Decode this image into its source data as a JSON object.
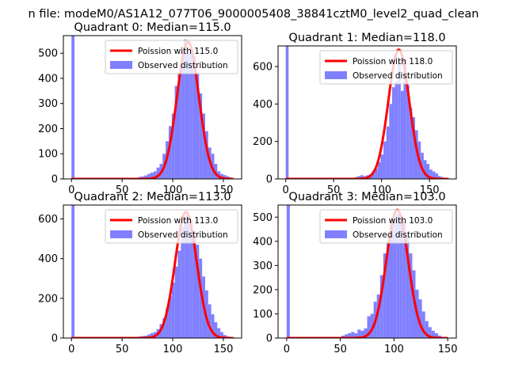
{
  "figure": {
    "suptitle": "n file: modeM0/AS1A12_077T06_9000005408_38841cztM0_level2_quad_clean"
  },
  "colors": {
    "hist": "#8080ff",
    "poisson": "#ff0000",
    "axes": "#000000"
  },
  "chart_data": [
    {
      "type": "bar",
      "title": "Quadrant 0: Median=115.0",
      "xlabel": "",
      "ylabel": "",
      "xlim": [
        -8,
        168
      ],
      "ylim": [
        0,
        570
      ],
      "xticks": [
        0,
        50,
        100,
        150
      ],
      "yticks": [
        0,
        100,
        200,
        300,
        400,
        500
      ],
      "grid": false,
      "legend_position": "top-right",
      "series": [
        {
          "name": "Poission with 115.0",
          "kind": "line",
          "mean": 115.0,
          "peak": 545,
          "x_range": [
            0,
            160
          ]
        },
        {
          "name": "Observed distribution",
          "kind": "histogram",
          "bin_width": 3,
          "bins": [
            {
              "x": 0,
              "y": 570
            },
            {
              "x": 66,
              "y": 8
            },
            {
              "x": 69,
              "y": 10
            },
            {
              "x": 72,
              "y": 14
            },
            {
              "x": 75,
              "y": 20
            },
            {
              "x": 78,
              "y": 25
            },
            {
              "x": 81,
              "y": 30
            },
            {
              "x": 84,
              "y": 45
            },
            {
              "x": 87,
              "y": 60
            },
            {
              "x": 90,
              "y": 100
            },
            {
              "x": 93,
              "y": 150
            },
            {
              "x": 96,
              "y": 210
            },
            {
              "x": 99,
              "y": 260
            },
            {
              "x": 102,
              "y": 370
            },
            {
              "x": 105,
              "y": 420
            },
            {
              "x": 108,
              "y": 480
            },
            {
              "x": 111,
              "y": 555
            },
            {
              "x": 114,
              "y": 500
            },
            {
              "x": 117,
              "y": 510
            },
            {
              "x": 120,
              "y": 490
            },
            {
              "x": 123,
              "y": 420
            },
            {
              "x": 126,
              "y": 340
            },
            {
              "x": 129,
              "y": 260
            },
            {
              "x": 132,
              "y": 190
            },
            {
              "x": 135,
              "y": 125
            },
            {
              "x": 138,
              "y": 100
            },
            {
              "x": 141,
              "y": 60
            },
            {
              "x": 144,
              "y": 30
            },
            {
              "x": 147,
              "y": 20
            },
            {
              "x": 150,
              "y": 15
            },
            {
              "x": 153,
              "y": 10
            },
            {
              "x": 156,
              "y": 5
            }
          ]
        }
      ]
    },
    {
      "type": "bar",
      "title": "Quadrant 1: Median=118.0",
      "xlabel": "",
      "ylabel": "",
      "xlim": [
        -8,
        178
      ],
      "ylim": [
        0,
        710
      ],
      "xticks": [
        0,
        50,
        100,
        150
      ],
      "yticks": [
        0,
        200,
        400,
        600
      ],
      "grid": false,
      "legend_position": "top-right",
      "series": [
        {
          "name": "Poission with 118.0",
          "kind": "line",
          "mean": 118.0,
          "peak": 690,
          "x_range": [
            0,
            170
          ]
        },
        {
          "name": "Observed distribution",
          "kind": "histogram",
          "bin_width": 3,
          "bins": [
            {
              "x": 0,
              "y": 710
            },
            {
              "x": 72,
              "y": 10
            },
            {
              "x": 75,
              "y": 15
            },
            {
              "x": 78,
              "y": 20
            },
            {
              "x": 81,
              "y": 15
            },
            {
              "x": 84,
              "y": 20
            },
            {
              "x": 87,
              "y": 25
            },
            {
              "x": 90,
              "y": 40
            },
            {
              "x": 93,
              "y": 55
            },
            {
              "x": 96,
              "y": 90
            },
            {
              "x": 99,
              "y": 130
            },
            {
              "x": 102,
              "y": 200
            },
            {
              "x": 105,
              "y": 280
            },
            {
              "x": 108,
              "y": 400
            },
            {
              "x": 111,
              "y": 490
            },
            {
              "x": 114,
              "y": 520
            },
            {
              "x": 117,
              "y": 640
            },
            {
              "x": 120,
              "y": 470
            },
            {
              "x": 123,
              "y": 640
            },
            {
              "x": 126,
              "y": 500
            },
            {
              "x": 129,
              "y": 380
            },
            {
              "x": 132,
              "y": 330
            },
            {
              "x": 135,
              "y": 260
            },
            {
              "x": 138,
              "y": 200
            },
            {
              "x": 141,
              "y": 140
            },
            {
              "x": 144,
              "y": 100
            },
            {
              "x": 147,
              "y": 80
            },
            {
              "x": 150,
              "y": 50
            },
            {
              "x": 153,
              "y": 40
            },
            {
              "x": 156,
              "y": 30
            },
            {
              "x": 159,
              "y": 15
            },
            {
              "x": 162,
              "y": 10
            }
          ]
        }
      ]
    },
    {
      "type": "bar",
      "title": "Quadrant 2: Median=113.0",
      "xlabel": "",
      "ylabel": "",
      "xlim": [
        -8,
        168
      ],
      "ylim": [
        0,
        670
      ],
      "xticks": [
        0,
        50,
        100,
        150
      ],
      "yticks": [
        0,
        200,
        400,
        600
      ],
      "grid": false,
      "legend_position": "top-right",
      "series": [
        {
          "name": "Poission with 113.0",
          "kind": "line",
          "mean": 113.0,
          "peak": 635,
          "x_range": [
            0,
            160
          ]
        },
        {
          "name": "Observed distribution",
          "kind": "histogram",
          "bin_width": 3,
          "bins": [
            {
              "x": 0,
              "y": 670
            },
            {
              "x": 63,
              "y": 5
            },
            {
              "x": 66,
              "y": 8
            },
            {
              "x": 69,
              "y": 10
            },
            {
              "x": 72,
              "y": 12
            },
            {
              "x": 75,
              "y": 18
            },
            {
              "x": 78,
              "y": 25
            },
            {
              "x": 81,
              "y": 30
            },
            {
              "x": 84,
              "y": 45
            },
            {
              "x": 87,
              "y": 70
            },
            {
              "x": 90,
              "y": 100
            },
            {
              "x": 93,
              "y": 150
            },
            {
              "x": 96,
              "y": 210
            },
            {
              "x": 99,
              "y": 280
            },
            {
              "x": 102,
              "y": 360
            },
            {
              "x": 105,
              "y": 440
            },
            {
              "x": 108,
              "y": 560
            },
            {
              "x": 111,
              "y": 610
            },
            {
              "x": 114,
              "y": 620
            },
            {
              "x": 117,
              "y": 590
            },
            {
              "x": 120,
              "y": 540
            },
            {
              "x": 123,
              "y": 470
            },
            {
              "x": 126,
              "y": 400
            },
            {
              "x": 129,
              "y": 310
            },
            {
              "x": 132,
              "y": 240
            },
            {
              "x": 135,
              "y": 170
            },
            {
              "x": 138,
              "y": 120
            },
            {
              "x": 141,
              "y": 80
            },
            {
              "x": 144,
              "y": 50
            },
            {
              "x": 147,
              "y": 30
            },
            {
              "x": 150,
              "y": 15
            },
            {
              "x": 153,
              "y": 8
            }
          ]
        }
      ]
    },
    {
      "type": "bar",
      "title": "Quadrant 3: Median=103.0",
      "xlabel": "",
      "ylabel": "",
      "xlim": [
        -8,
        158
      ],
      "ylim": [
        0,
        550
      ],
      "xticks": [
        0,
        50,
        100,
        150
      ],
      "yticks": [
        0,
        100,
        200,
        300,
        400,
        500
      ],
      "grid": false,
      "legend_position": "top-right",
      "series": [
        {
          "name": "Poission with 103.0",
          "kind": "line",
          "mean": 103.0,
          "peak": 530,
          "x_range": [
            0,
            150
          ]
        },
        {
          "name": "Observed distribution",
          "kind": "histogram",
          "bin_width": 3,
          "bins": [
            {
              "x": 0,
              "y": 550
            },
            {
              "x": 51,
              "y": 10
            },
            {
              "x": 54,
              "y": 15
            },
            {
              "x": 57,
              "y": 20
            },
            {
              "x": 60,
              "y": 25
            },
            {
              "x": 63,
              "y": 20
            },
            {
              "x": 66,
              "y": 35
            },
            {
              "x": 69,
              "y": 30
            },
            {
              "x": 72,
              "y": 40
            },
            {
              "x": 75,
              "y": 90
            },
            {
              "x": 78,
              "y": 100
            },
            {
              "x": 81,
              "y": 150
            },
            {
              "x": 84,
              "y": 180
            },
            {
              "x": 87,
              "y": 260
            },
            {
              "x": 90,
              "y": 350
            },
            {
              "x": 93,
              "y": 400
            },
            {
              "x": 96,
              "y": 470
            },
            {
              "x": 99,
              "y": 500
            },
            {
              "x": 102,
              "y": 515
            },
            {
              "x": 105,
              "y": 500
            },
            {
              "x": 108,
              "y": 480
            },
            {
              "x": 111,
              "y": 420
            },
            {
              "x": 114,
              "y": 350
            },
            {
              "x": 117,
              "y": 280
            },
            {
              "x": 120,
              "y": 200
            },
            {
              "x": 123,
              "y": 160
            },
            {
              "x": 126,
              "y": 110
            },
            {
              "x": 129,
              "y": 70
            },
            {
              "x": 132,
              "y": 45
            },
            {
              "x": 135,
              "y": 30
            },
            {
              "x": 138,
              "y": 20
            },
            {
              "x": 141,
              "y": 10
            }
          ]
        }
      ]
    }
  ]
}
